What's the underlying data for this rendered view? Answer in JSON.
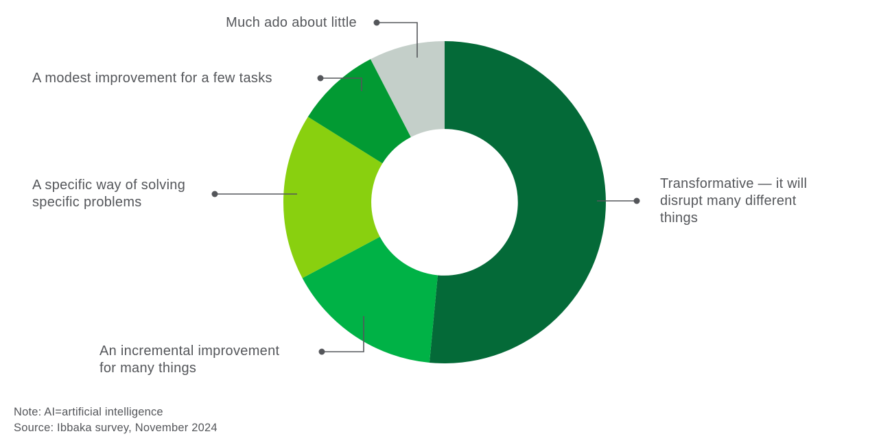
{
  "page": {
    "background_color": "#FFFFFF",
    "text_color": "#54565A",
    "connector_color": "#54565A"
  },
  "chart_data": {
    "type": "pie",
    "subtype": "donut",
    "title": "",
    "direction": "clockwise",
    "start_angle_deg": 0,
    "inner_radius_ratio": 0.455,
    "values_estimated_from_arc_angles": true,
    "segments": [
      {
        "id": "transformative",
        "label": "Transformative — it will disrupt many different things",
        "value_pct": 51.5,
        "color": "#046A38"
      },
      {
        "id": "incremental",
        "label": "An incremental improvement for many things",
        "value_pct": 15.7,
        "color": "#00B246"
      },
      {
        "id": "specific",
        "label": "A specific way of solving specific problems",
        "value_pct": 16.7,
        "color": "#89D00F"
      },
      {
        "id": "modest",
        "label": "A modest improvement for a few tasks",
        "value_pct": 8.5,
        "color": "#029A33"
      },
      {
        "id": "much-ado",
        "label": "Much ado about little",
        "value_pct": 7.6,
        "color": "#C4CFC9"
      }
    ]
  },
  "callouts": {
    "much_ado": {
      "lines": [
        "Much ado about little"
      ]
    },
    "modest": {
      "lines": [
        "A modest improvement for a few tasks"
      ]
    },
    "specific": {
      "lines": [
        "A specific way of solving",
        "specific problems"
      ]
    },
    "incremental": {
      "lines": [
        "An incremental improvement",
        "for many things"
      ]
    },
    "transformative": {
      "lines": [
        "Transformative — it will",
        "disrupt many different",
        "things"
      ]
    }
  },
  "footnotes": {
    "note": "Note: AI=artificial intelligence",
    "source": "Source: Ibbaka survey, November 2024"
  }
}
